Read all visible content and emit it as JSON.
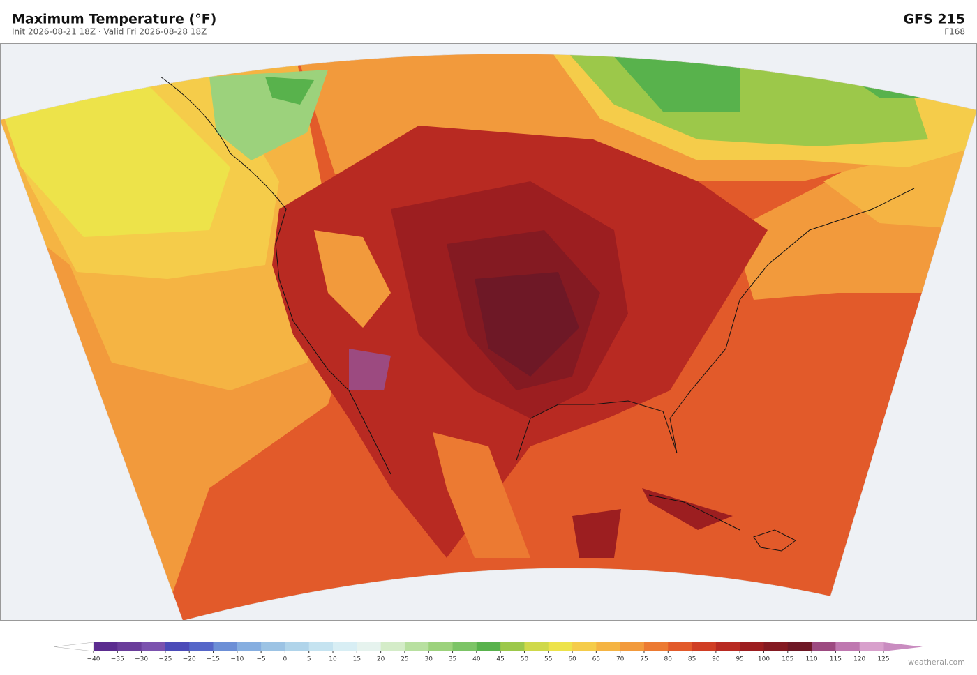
{
  "header": {
    "title": "Maximum Temperature  (°F)",
    "subtitle": "Init 2026-08-21 18Z  ·  Valid Fri 2026-08-28 18Z",
    "model": "GFS  215",
    "forecast_hour": "F168"
  },
  "colorbar": {
    "ticks": [
      {
        "value": -40,
        "label": "−40"
      },
      {
        "value": -35,
        "label": "−35"
      },
      {
        "value": -30,
        "label": "−30"
      },
      {
        "value": -25,
        "label": "−25"
      },
      {
        "value": -20,
        "label": "−20"
      },
      {
        "value": -15,
        "label": "−15"
      },
      {
        "value": -10,
        "label": "−10"
      },
      {
        "value": -5,
        "label": "−5"
      },
      0,
      5,
      10,
      15,
      20,
      25,
      30,
      35,
      40,
      45,
      50,
      55,
      60,
      65,
      70,
      75,
      80,
      85,
      90,
      95,
      100,
      105,
      110,
      115,
      120,
      125
    ],
    "colors": [
      "#5b2c8f",
      "#6a3d9a",
      "#7b52ae",
      "#4b4bb8",
      "#5566c8",
      "#6c8fd6",
      "#86aee0",
      "#9cc3e4",
      "#b0d4ea",
      "#c5e3f0",
      "#d8eef4",
      "#e6f3ee",
      "#d4ecc8",
      "#b8e0a0",
      "#9cd27c",
      "#7cc466",
      "#58b24c",
      "#9cc84a",
      "#cfd94a",
      "#ede34a",
      "#f5cc4a",
      "#f5b443",
      "#f29a3c",
      "#ec7a32",
      "#e25a2a",
      "#d03e24",
      "#b82a22",
      "#9c1e20",
      "#841a22",
      "#6e1826",
      "#9c4a80",
      "#bf78b0",
      "#d8a0cc"
    ],
    "under_color": "#ffffff",
    "over_color": "#c98cc0"
  },
  "credit": "weatherai.com"
}
